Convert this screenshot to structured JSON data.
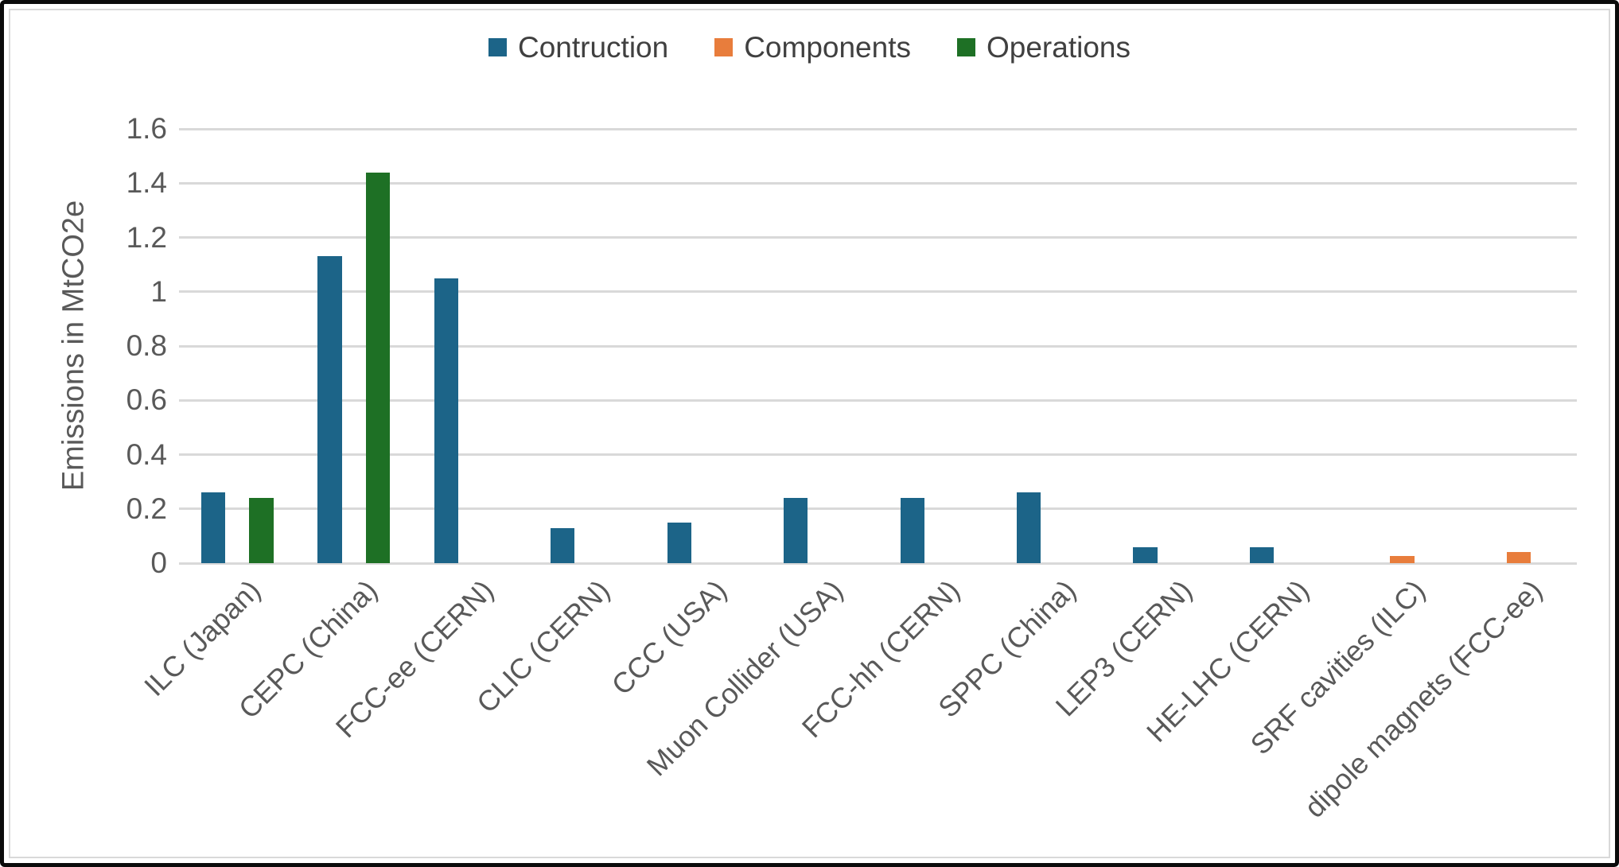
{
  "frame": {
    "outer_border_color": "#0a0a0a",
    "inner_border_color": "#d9d9d9",
    "background": "#ffffff"
  },
  "chart_data": {
    "type": "bar",
    "title": "",
    "xlabel": "",
    "ylabel": "Emissions in MtCO2e",
    "ylim": [
      0,
      1.6
    ],
    "yticks": [
      0,
      0.2,
      0.4,
      0.6,
      0.8,
      1,
      1.2,
      1.4,
      1.6
    ],
    "ytick_labels": [
      "0",
      "0.2",
      "0.4",
      "0.6",
      "0.8",
      "1",
      "1.2",
      "1.4",
      "1.6"
    ],
    "grid": true,
    "gridline_color": "#d9d9d9",
    "axis_text_color": "#595959",
    "legend_text_color": "#404040",
    "legend_position": "top-center",
    "bar_layout": "grouped-3-slots",
    "categories": [
      "ILC (Japan)",
      "CEPC (China)",
      "FCC-ee (CERN)",
      "CLIC (CERN)",
      "CCC (USA)",
      "Muon Collider (USA)",
      "FCC-hh (CERN)",
      "SPPC (China)",
      "LEP3 (CERN)",
      "HE-LHC (CERN)",
      "SRF cavities (ILC)",
      "dipole magnets (FCC-ee)"
    ],
    "series": [
      {
        "name": "Contruction",
        "color": "#1c6488",
        "values": [
          0.26,
          1.13,
          1.05,
          0.13,
          0.15,
          0.24,
          0.24,
          0.26,
          0.06,
          0.06,
          null,
          null
        ]
      },
      {
        "name": "Components",
        "color": "#e87d3c",
        "values": [
          null,
          null,
          null,
          null,
          null,
          null,
          null,
          null,
          null,
          null,
          0.025,
          0.04
        ]
      },
      {
        "name": "Operations",
        "color": "#1e7025",
        "values": [
          0.24,
          1.44,
          null,
          null,
          null,
          null,
          null,
          null,
          null,
          null,
          null,
          null
        ]
      }
    ]
  }
}
